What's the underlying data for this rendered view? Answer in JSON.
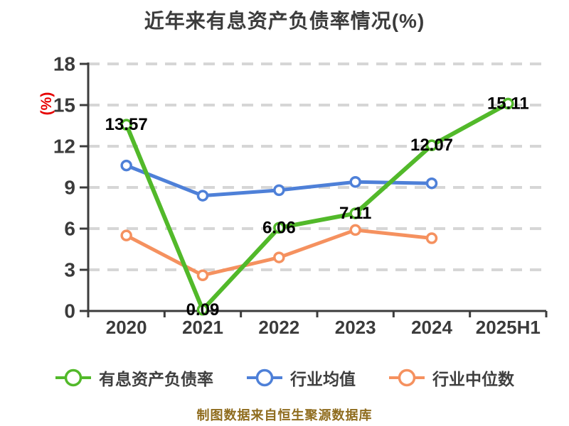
{
  "title": "近年来有息资产负债率情况(%)",
  "footer": "制图数据来自恒生聚源数据库",
  "colors": {
    "main_series_green": "#52b92a",
    "industry_mean_blue": "#4e80d8",
    "industry_median_orange": "#f5915f",
    "grid_line": "#d6d6d6",
    "axis_line": "#3c3c3c",
    "tick_label": "#3b3b3b",
    "data_label": "#000000",
    "y_axis_title_red": "#e60000",
    "footer_gold": "#8f6c1e",
    "legend_text": "#3f3f3f",
    "marker_fill": "#ffffff"
  },
  "chart_data": {
    "type": "line",
    "title": "近年来有息资产负债率情况(%)",
    "xlabel": "",
    "ylabel": "(%)",
    "categories": [
      "2020",
      "2021",
      "2022",
      "2023",
      "2024",
      "2025H1"
    ],
    "y_ticks": [
      0,
      3,
      6,
      9,
      12,
      15,
      18
    ],
    "ylim": [
      0,
      18
    ],
    "grid": "horizontal dashed",
    "legend_position": "bottom",
    "series": [
      {
        "name": "有息资产负债率",
        "color": "#52b92a",
        "show_labels": true,
        "values": [
          13.57,
          0.09,
          6.06,
          7.11,
          12.07,
          15.11
        ],
        "labels": [
          "13.57",
          "0.09",
          "6.06",
          "7.11",
          "12.07",
          "15.11"
        ]
      },
      {
        "name": "行业均值",
        "color": "#4e80d8",
        "show_labels": false,
        "values": [
          10.6,
          8.4,
          8.8,
          9.4,
          9.3,
          null
        ],
        "labels": []
      },
      {
        "name": "行业中位数",
        "color": "#f5915f",
        "show_labels": false,
        "values": [
          5.5,
          2.6,
          3.9,
          5.9,
          5.3,
          null
        ],
        "labels": []
      }
    ]
  }
}
